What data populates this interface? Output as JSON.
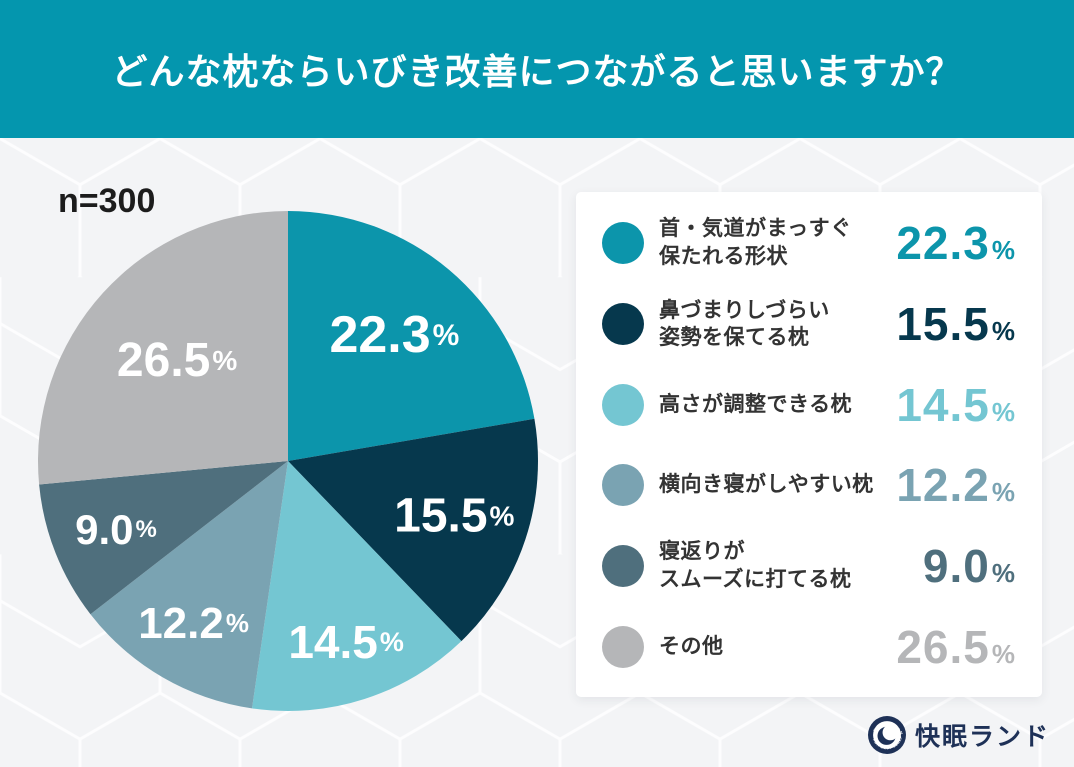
{
  "header": {
    "title": "どんな枕ならいびき改善につながると思いますか？"
  },
  "sample_label": "n=300",
  "chart_data": {
    "type": "pie",
    "title": "どんな枕ならいびき改善につながると思いますか？",
    "n": 300,
    "categories": [
      "首・気道がまっすぐ保たれる形状",
      "鼻づまりしづらい姿勢を保てる枕",
      "高さが調整できる枕",
      "横向き寝がしやすい枕",
      "寝返りがスムーズに打てる枕",
      "その他"
    ],
    "values": [
      22.3,
      15.5,
      14.5,
      12.2,
      9.0,
      26.5
    ],
    "colors": [
      "#0c95ab",
      "#06384d",
      "#74c6d2",
      "#7aa3b2",
      "#4f6f7d",
      "#b5b6b8"
    ],
    "unit": "%",
    "start_angle": "top",
    "direction": "clockwise",
    "slice_labels_on_chart": true,
    "legend_position": "right"
  },
  "legend": {
    "items": [
      {
        "label": "首・気道がまっすぐ\n保たれる形状",
        "value": "22.3",
        "unit": "%",
        "color": "#0c95ab"
      },
      {
        "label": "鼻づまりしづらい\n姿勢を保てる枕",
        "value": "15.5",
        "unit": "%",
        "color": "#06384d"
      },
      {
        "label": "高さが調整できる枕",
        "value": "14.5",
        "unit": "%",
        "color": "#74c6d2"
      },
      {
        "label": "横向き寝がしやすい枕",
        "value": "12.2",
        "unit": "%",
        "color": "#7aa3b2"
      },
      {
        "label": "寝返りが\nスムーズに打てる枕",
        "value": "9.0",
        "unit": "%",
        "color": "#4f6f7d"
      },
      {
        "label": "その他",
        "value": "26.5",
        "unit": "%",
        "color": "#b5b6b8"
      }
    ]
  },
  "footer": {
    "brand": "快眠ランド",
    "logo": "crescent-moon-emblem",
    "brand_color": "#1e3157"
  },
  "theme": {
    "header_bg": "#0496ae",
    "body_bg": "#e9ebee",
    "card_bg": "#ffffff"
  }
}
